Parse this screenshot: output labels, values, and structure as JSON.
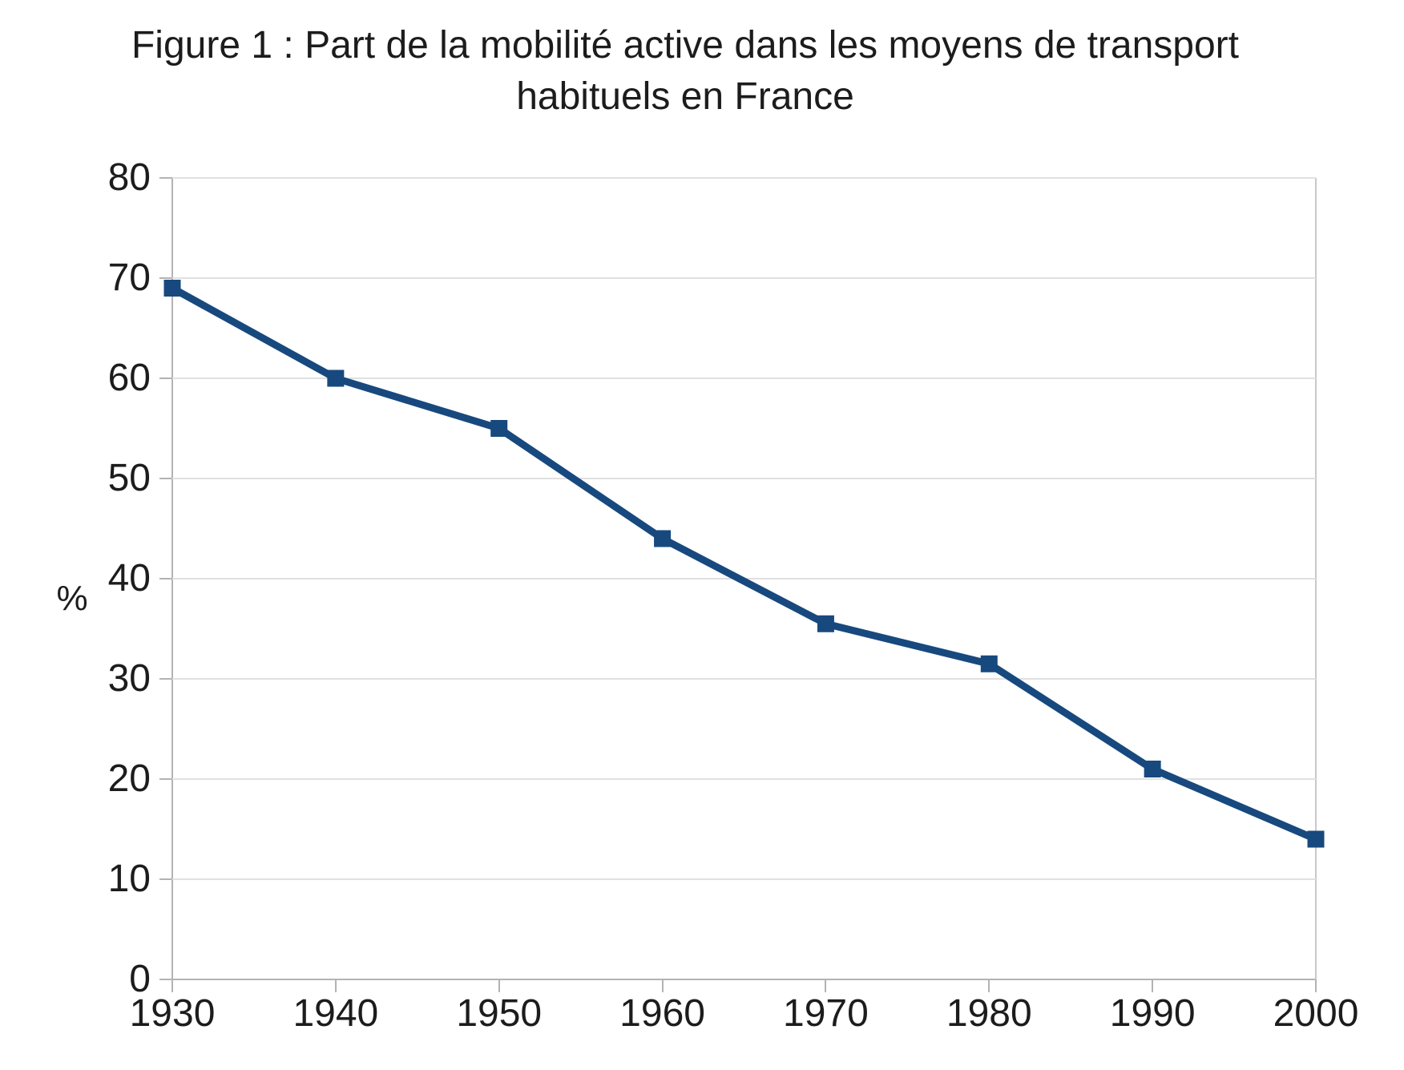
{
  "figure": {
    "title_full": "Figure 1 : Part de la mobilité active dans les moyens de transport habituels en France",
    "title_lines": [
      "Figure 1 : Part de la mobilité active dans les moyens de transport",
      "habituels en France"
    ]
  },
  "chart_data": {
    "type": "line",
    "title": "Figure 1 : Part de la mobilité active dans les moyens de transport habituels en France",
    "x": [
      1930,
      1940,
      1950,
      1960,
      1970,
      1980,
      1990,
      2000
    ],
    "values": [
      69,
      60,
      55,
      44,
      35.5,
      31.5,
      21,
      14
    ],
    "xlabel": "",
    "ylabel": "%",
    "ylim": [
      0,
      80
    ],
    "y_ticks": [
      0,
      10,
      20,
      30,
      40,
      50,
      60,
      70,
      80
    ],
    "grid": "horizontal",
    "legend": "none",
    "marker": "square",
    "style": {
      "line_color": "#17497E",
      "marker_color": "#17497E",
      "grid_color": "#e0e0e0",
      "axis_color": "#b3b3b3",
      "text_color": "#1c1c1c",
      "background": "#ffffff"
    }
  }
}
